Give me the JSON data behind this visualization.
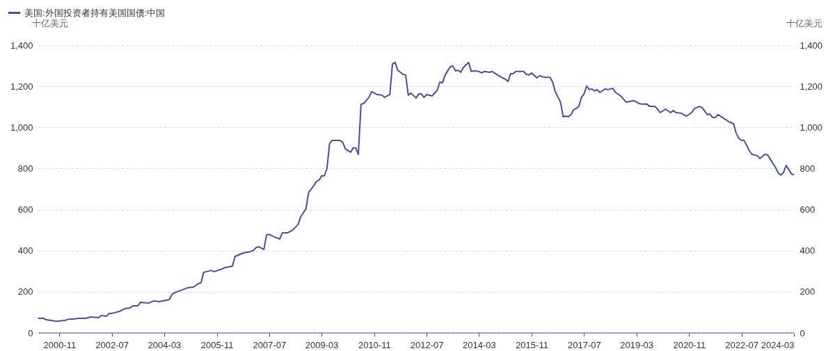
{
  "chart_data": {
    "type": "line",
    "ylabel": "十亿美元",
    "y2label": "十亿美元",
    "x": [
      "2000-03",
      "2000-05",
      "2000-06",
      "2000-10",
      "2001-01",
      "2001-03",
      "2001-05",
      "2001-06",
      "2001-09",
      "2001-11",
      "2002-02",
      "2002-03",
      "2002-05",
      "2002-06",
      "2002-07",
      "2002-10",
      "2002-12",
      "2003-02",
      "2003-03",
      "2003-05",
      "2003-06",
      "2003-09",
      "2003-11",
      "2004-01",
      "2004-05",
      "2004-06",
      "2004-07",
      "2004-10",
      "2004-12",
      "2005-02",
      "2005-04",
      "2005-05",
      "2005-06",
      "2005-07",
      "2005-09",
      "2005-10",
      "2006-01",
      "2006-02",
      "2006-05",
      "2006-06",
      "2006-09",
      "2006-12",
      "2007-01",
      "2007-02",
      "2007-03",
      "2007-05",
      "2007-06",
      "2007-07",
      "2007-09",
      "2007-11",
      "2007-12",
      "2008-02",
      "2008-04",
      "2008-06",
      "2008-07",
      "2008-09",
      "2008-10",
      "2008-12",
      "2009-01",
      "2009-02",
      "2009-03",
      "2009-04",
      "2009-05",
      "2009-06",
      "2009-07",
      "2009-10",
      "2009-11",
      "2009-12",
      "2010-02",
      "2010-03",
      "2010-04",
      "2010-05",
      "2010-06",
      "2010-07",
      "2010-09",
      "2010-10",
      "2010-12",
      "2011-02",
      "2011-03",
      "2011-05",
      "2011-06",
      "2011-07",
      "2011-08",
      "2011-10",
      "2011-11",
      "2011-12",
      "2012-01",
      "2012-03",
      "2012-04",
      "2012-05",
      "2012-06",
      "2012-07",
      "2012-09",
      "2012-11",
      "2012-12",
      "2013-01",
      "2013-02",
      "2013-04",
      "2013-05",
      "2013-06",
      "2013-07",
      "2013-08",
      "2013-09",
      "2013-11",
      "2013-12",
      "2014-01",
      "2014-03",
      "2014-04",
      "2014-05",
      "2014-07",
      "2014-08",
      "2014-10",
      "2014-12",
      "2015-01",
      "2015-02",
      "2015-03",
      "2015-04",
      "2015-05",
      "2015-08",
      "2015-09",
      "2015-10",
      "2015-11",
      "2016-01",
      "2016-02",
      "2016-04",
      "2016-06",
      "2016-07",
      "2016-08",
      "2016-10",
      "2016-11",
      "2016-12",
      "2017-01",
      "2017-02",
      "2017-03",
      "2017-04",
      "2017-05",
      "2017-06",
      "2017-07",
      "2017-08",
      "2017-09",
      "2017-10",
      "2017-11",
      "2017-12",
      "2018-01",
      "2018-03",
      "2018-04",
      "2018-06",
      "2018-07",
      "2018-09",
      "2018-11",
      "2019-02",
      "2019-04",
      "2019-05",
      "2019-07",
      "2019-08",
      "2019-10",
      "2019-11",
      "2019-12",
      "2020-02",
      "2020-04",
      "2020-05",
      "2020-06",
      "2020-08",
      "2020-10",
      "2020-12",
      "2021-01",
      "2021-03",
      "2021-04",
      "2021-06",
      "2021-07",
      "2021-08",
      "2021-09",
      "2021-10",
      "2022-01",
      "2022-02",
      "2022-04",
      "2022-05",
      "2022-06",
      "2022-07",
      "2022-08",
      "2022-10",
      "2022-11",
      "2023-01",
      "2023-02",
      "2023-04",
      "2023-05",
      "2023-06",
      "2023-07",
      "2023-08",
      "2023-09",
      "2023-10",
      "2023-11",
      "2023-12",
      "2024-01",
      "2024-02",
      "2024-03"
    ],
    "series": [
      {
        "name": "美国:外国投资者持有美国国债:中国",
        "color": "#44509a",
        "values": [
          71,
          71,
          64,
          57,
          61,
          68,
          68,
          71,
          71,
          78,
          74,
          85,
          81,
          95,
          95,
          105,
          118,
          122,
          132,
          132,
          149,
          145,
          156,
          152,
          162,
          189,
          196,
          210,
          220,
          223,
          240,
          243,
          294,
          298,
          304,
          298,
          311,
          318,
          325,
          372,
          389,
          396,
          402,
          416,
          419,
          406,
          477,
          480,
          467,
          457,
          487,
          487,
          501,
          528,
          565,
          605,
          683,
          717,
          737,
          744,
          764,
          764,
          798,
          920,
          937,
          937,
          927,
          896,
          879,
          900,
          900,
          869,
          1113,
          1116,
          1146,
          1174,
          1160,
          1157,
          1146,
          1160,
          1309,
          1316,
          1278,
          1258,
          1255,
          1157,
          1167,
          1143,
          1163,
          1163,
          1146,
          1160,
          1153,
          1180,
          1221,
          1217,
          1255,
          1295,
          1299,
          1275,
          1278,
          1268,
          1292,
          1316,
          1272,
          1275,
          1272,
          1265,
          1272,
          1268,
          1272,
          1255,
          1241,
          1234,
          1224,
          1261,
          1261,
          1272,
          1272,
          1258,
          1255,
          1265,
          1241,
          1251,
          1244,
          1244,
          1221,
          1174,
          1123,
          1052,
          1055,
          1052,
          1062,
          1086,
          1092,
          1102,
          1146,
          1163,
          1201,
          1184,
          1187,
          1177,
          1184,
          1170,
          1187,
          1184,
          1190,
          1170,
          1153,
          1123,
          1130,
          1116,
          1113,
          1113,
          1102,
          1102,
          1089,
          1072,
          1089,
          1072,
          1082,
          1072,
          1069,
          1055,
          1072,
          1092,
          1102,
          1096,
          1062,
          1065,
          1048,
          1048,
          1062,
          1038,
          1028,
          1018,
          971,
          947,
          937,
          937,
          886,
          869,
          862,
          849,
          869,
          866,
          845,
          825,
          805,
          778,
          768,
          781,
          815,
          795,
          774,
          768
        ]
      }
    ],
    "xlim": [
      "2000-03",
      "2024-03"
    ],
    "xticks": [
      "2000-11",
      "2002-07",
      "2004-03",
      "2005-11",
      "2007-07",
      "2009-03",
      "2010-11",
      "2012-07",
      "2014-03",
      "2015-11",
      "2017-07",
      "2019-03",
      "2020-11",
      "2022-07",
      "2024-03"
    ],
    "ylim": [
      0,
      1400
    ],
    "yticks": [
      0,
      200,
      400,
      600,
      800,
      {
        "value": 1000,
        "label": "1,000"
      },
      {
        "value": 1200,
        "label": "1,200"
      },
      {
        "value": 1400,
        "label": "1,400"
      }
    ],
    "y2lim": [
      0,
      1400
    ],
    "y2ticks": [
      0,
      200,
      400,
      600,
      800,
      {
        "value": 1000,
        "label": "1,000"
      },
      {
        "value": 1200,
        "label": "1,200"
      },
      {
        "value": 1400,
        "label": "1,400"
      }
    ],
    "grid": "y",
    "legend": "top left",
    "line_style": "solid",
    "marker": "none"
  }
}
